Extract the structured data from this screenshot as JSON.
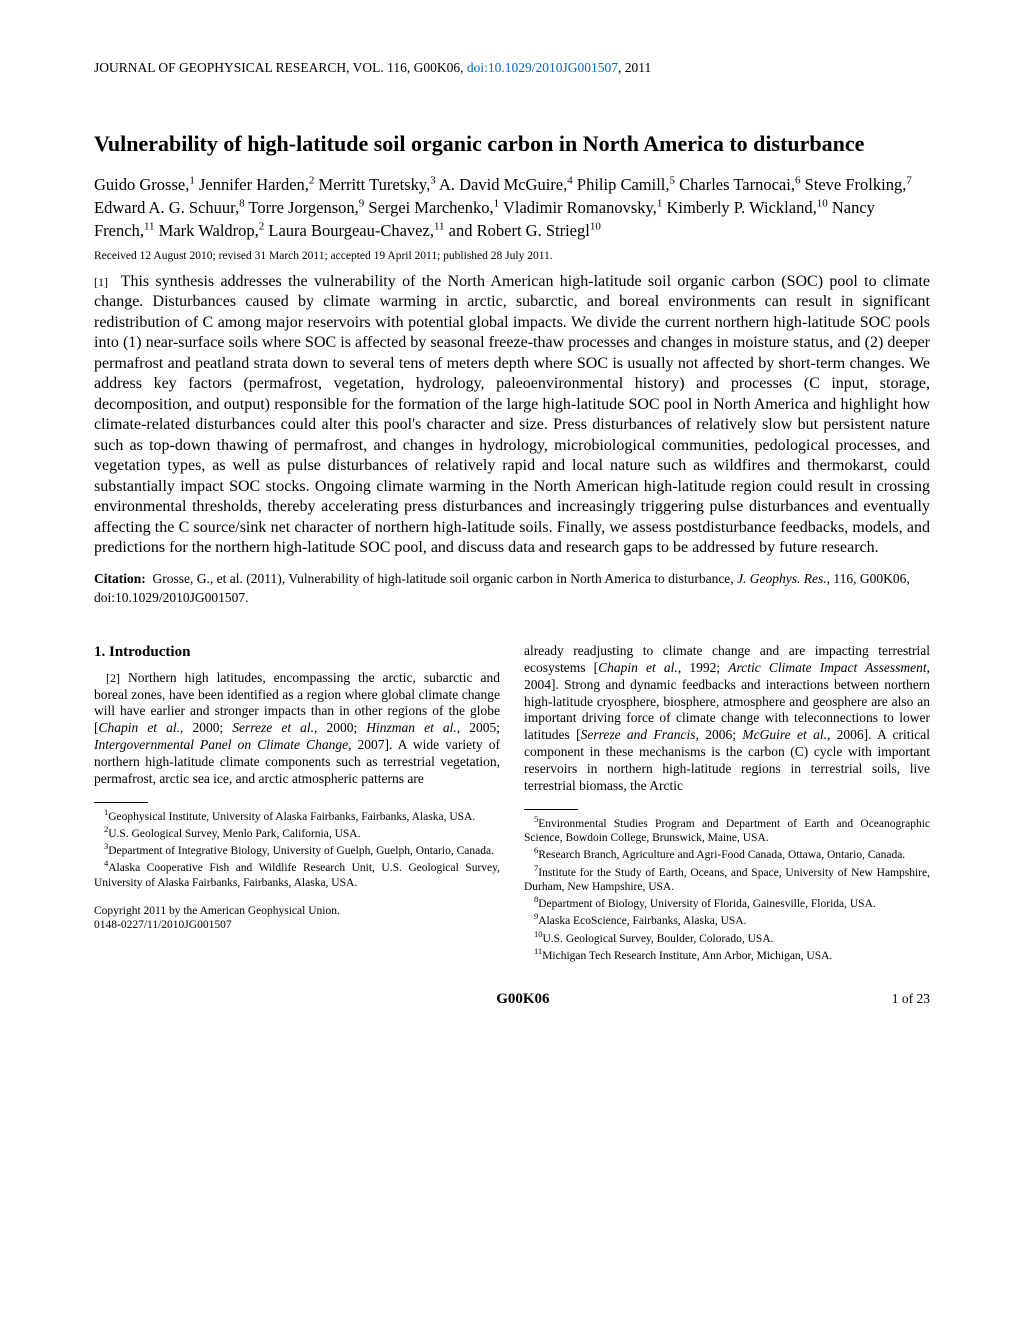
{
  "journal_line_prefix": "JOURNAL OF GEOPHYSICAL RESEARCH, VOL. 116, G00K06, ",
  "doi": "doi:10.1029/2010JG001507",
  "journal_line_suffix": ", 2011",
  "title": "Vulnerability of high-latitude soil organic carbon in North America to disturbance",
  "authors_html": "Guido Grosse,<sup>1</sup> Jennifer Harden,<sup>2</sup> Merritt Turetsky,<sup>3</sup> A. David McGuire,<sup>4</sup> Philip Camill,<sup>5</sup> Charles Tarnocai,<sup>6</sup> Steve Frolking,<sup>7</sup> Edward A. G. Schuur,<sup>8</sup> Torre Jorgenson,<sup>9</sup> Sergei Marchenko,<sup>1</sup> Vladimir Romanovsky,<sup>1</sup> Kimberly P. Wickland,<sup>10</sup> Nancy French,<sup>11</sup> Mark Waldrop,<sup>2</sup> Laura Bourgeau-Chavez,<sup>11</sup> and Robert G. Striegl<sup>10</sup>",
  "received": "Received 12 August 2010; revised 31 March 2011; accepted 19 April 2011; published 28 July 2011.",
  "abstract_num": "[1]",
  "abstract": "This synthesis addresses the vulnerability of the North American high-latitude soil organic carbon (SOC) pool to climate change. Disturbances caused by climate warming in arctic, subarctic, and boreal environments can result in significant redistribution of C among major reservoirs with potential global impacts. We divide the current northern high-latitude SOC pools into (1) near-surface soils where SOC is affected by seasonal freeze-thaw processes and changes in moisture status, and (2) deeper permafrost and peatland strata down to several tens of meters depth where SOC is usually not affected by short-term changes. We address key factors (permafrost, vegetation, hydrology, paleoenvironmental history) and processes (C input, storage, decomposition, and output) responsible for the formation of the large high-latitude SOC pool in North America and highlight how climate-related disturbances could alter this pool's character and size. Press disturbances of relatively slow but persistent nature such as top-down thawing of permafrost, and changes in hydrology, microbiological communities, pedological processes, and vegetation types, as well as pulse disturbances of relatively rapid and local nature such as wildfires and thermokarst, could substantially impact SOC stocks. Ongoing climate warming in the North American high-latitude region could result in crossing environmental thresholds, thereby accelerating press disturbances and increasingly triggering pulse disturbances and eventually affecting the C source/sink net character of northern high-latitude soils. Finally, we assess postdisturbance feedbacks, models, and predictions for the northern high-latitude SOC pool, and discuss data and research gaps to be addressed by future research.",
  "citation_label": "Citation:",
  "citation_text": "Grosse, G., et al. (2011), Vulnerability of high-latitude soil organic carbon in North America to disturbance,",
  "citation_journal": "J. Geophys. Res.",
  "citation_tail": ", 116, G00K06, doi:10.1029/2010JG001507.",
  "section_title": "1.   Introduction",
  "intro_num": "[2]",
  "intro_left": "Northern high latitudes, encompassing the arctic, subarctic and boreal zones, have been identified as a region where global climate change will have earlier and stronger impacts than in other regions of the globe [<span class=\"ital\">Chapin et al.</span>, 2000; <span class=\"ital\">Serreze et al.</span>, 2000; <span class=\"ital\">Hinzman et al.</span>, 2005; <span class=\"ital\">Intergovernmental Panel on Climate Change</span>, 2007]. A wide variety of northern high-latitude climate components such as terrestrial vegetation, permafrost, arctic sea ice, and arctic atmospheric patterns are",
  "intro_right": "already readjusting to climate change and are impacting terrestrial ecosystems [<span class=\"ital\">Chapin et al.</span>, 1992; <span class=\"ital\">Arctic Climate Impact Assessment</span>, 2004]. Strong and dynamic feedbacks and interactions between northern high-latitude cryosphere, biosphere, atmosphere and geosphere are also an important driving force of climate change with teleconnections to lower latitudes [<span class=\"ital\">Serreze and Francis</span>, 2006; <span class=\"ital\">McGuire et al.</span>, 2006]. A critical component in these mechanisms is the carbon (C) cycle with important reservoirs in northern high-latitude regions in terrestrial soils, live terrestrial biomass, the Arctic",
  "affils_left": [
    "<sup>1</sup>Geophysical Institute, University of Alaska Fairbanks, Fairbanks, Alaska, USA.",
    "<sup>2</sup>U.S. Geological Survey, Menlo Park, California, USA.",
    "<sup>3</sup>Department of Integrative Biology, University of Guelph, Guelph, Ontario, Canada.",
    "<sup>4</sup>Alaska Cooperative Fish and Wildlife Research Unit, U.S. Geological Survey, University of Alaska Fairbanks, Fairbanks, Alaska, USA."
  ],
  "affils_right": [
    "<sup>5</sup>Environmental Studies Program and Department of Earth and Oceanographic Science, Bowdoin College, Brunswick, Maine, USA.",
    "<sup>6</sup>Research Branch, Agriculture and Agri-Food Canada, Ottawa, Ontario, Canada.",
    "<sup>7</sup>Institute for the Study of Earth, Oceans, and Space, University of New Hampshire, Durham, New Hampshire, USA.",
    "<sup>8</sup>Department of Biology, University of Florida, Gainesville, Florida, USA.",
    "<sup>9</sup>Alaska EcoScience, Fairbanks, Alaska, USA.",
    "<sup>10</sup>U.S. Geological Survey, Boulder, Colorado, USA.",
    "<sup>11</sup>Michigan Tech Research Institute, Ann Arbor, Michigan, USA."
  ],
  "copyright_line1": "Copyright 2011 by the American Geophysical Union.",
  "copyright_line2": "0148-0227/11/2010JG001507",
  "page_id": "G00K06",
  "page_num": "1 of 23"
}
